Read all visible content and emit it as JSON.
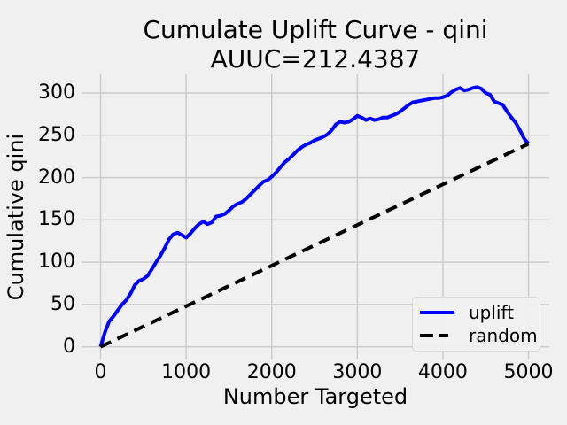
{
  "figure": {
    "background_color": "#f0f0f0",
    "grid_color": "#cbcbcb",
    "text_color": "#000000"
  },
  "chart_data": {
    "type": "line",
    "title_lines": [
      "Cumulate Uplift Curve - qini",
      "AUUC=212.4387"
    ],
    "auuc_value": "212.4387",
    "xlabel": "Number Targeted",
    "ylabel": "Cumulative qini",
    "x_ticks": [
      0,
      1000,
      2000,
      3000,
      4000,
      5000
    ],
    "y_ticks": [
      0,
      50,
      100,
      150,
      200,
      250,
      300
    ],
    "xlim": [
      -223,
      5243
    ],
    "ylim": [
      -15,
      322
    ],
    "grid": true,
    "legend_position": "lower right",
    "series": [
      {
        "name": "uplift",
        "color": "#0000ff",
        "style": "solid",
        "x": [
          0,
          50,
          100,
          150,
          200,
          250,
          300,
          350,
          400,
          450,
          500,
          550,
          600,
          650,
          700,
          750,
          800,
          850,
          900,
          950,
          1000,
          1050,
          1100,
          1150,
          1200,
          1250,
          1300,
          1350,
          1400,
          1450,
          1500,
          1550,
          1600,
          1650,
          1700,
          1750,
          1800,
          1850,
          1900,
          1950,
          2000,
          2050,
          2100,
          2150,
          2200,
          2250,
          2300,
          2350,
          2400,
          2450,
          2500,
          2550,
          2600,
          2650,
          2700,
          2750,
          2800,
          2850,
          2900,
          2950,
          3000,
          3050,
          3100,
          3150,
          3200,
          3250,
          3300,
          3350,
          3400,
          3450,
          3500,
          3550,
          3600,
          3650,
          3700,
          3750,
          3800,
          3850,
          3900,
          3950,
          4000,
          4050,
          4100,
          4150,
          4200,
          4250,
          4300,
          4350,
          4400,
          4450,
          4500,
          4550,
          4600,
          4650,
          4700,
          4750,
          4800,
          4850,
          4900,
          4950,
          5000
        ],
        "y": [
          0,
          17,
          30,
          36,
          43,
          50,
          55,
          63,
          73,
          78,
          80,
          84,
          92,
          100,
          108,
          117,
          127,
          133,
          135,
          132,
          129,
          134,
          140,
          145,
          148,
          145,
          147,
          154,
          155,
          157,
          161,
          166,
          169,
          171,
          175,
          180,
          185,
          190,
          195,
          197,
          201,
          206,
          212,
          218,
          222,
          227,
          232,
          236,
          239,
          241,
          244,
          246,
          248,
          251,
          256,
          263,
          266,
          265,
          266,
          269,
          273,
          271,
          268,
          270,
          268,
          269,
          271,
          271,
          273,
          275,
          278,
          282,
          286,
          289,
          290,
          291,
          292,
          293,
          294,
          294,
          295,
          297,
          301,
          304,
          306,
          303,
          304,
          306,
          307,
          305,
          300,
          298,
          290,
          288,
          286,
          278,
          271,
          265,
          256,
          246,
          240
        ]
      },
      {
        "name": "random",
        "color": "#000000",
        "style": "dashed",
        "x": [
          0,
          5000
        ],
        "y": [
          0,
          240
        ]
      }
    ]
  },
  "legend": {
    "entries": [
      {
        "label": "uplift"
      },
      {
        "label": "random"
      }
    ]
  }
}
